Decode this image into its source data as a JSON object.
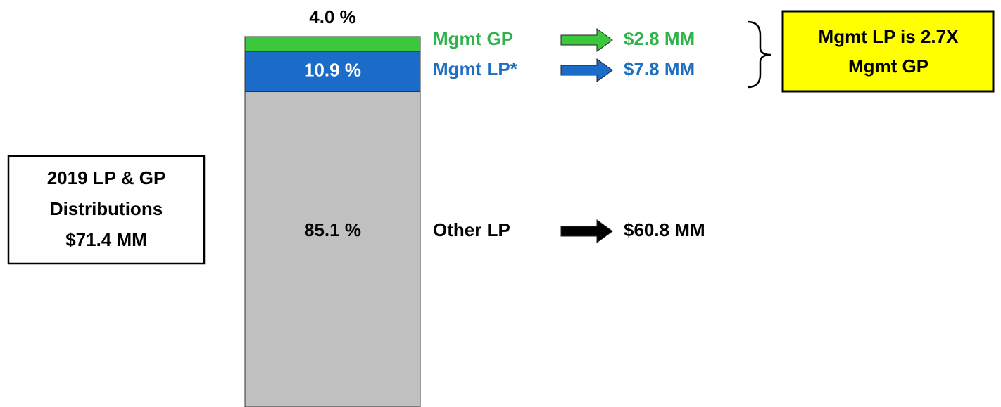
{
  "chart_data": {
    "type": "bar",
    "stacked": true,
    "ylim": [
      0,
      100
    ],
    "box_lines": [
      "2019 LP & GP",
      "Distributions",
      "$71.4 MM"
    ],
    "callout_lines": [
      "Mgmt LP is 2.7X",
      "Mgmt GP"
    ],
    "callout_color": "#ffff00",
    "series": [
      {
        "name": "Other LP",
        "color": "#c0c0c0",
        "text_color": "#000000",
        "values": [
          85.1
        ],
        "value_labels": [
          "85.1 %"
        ],
        "amount": "$60.8 MM"
      },
      {
        "name": "Mgmt LP*",
        "color": "#1a6cc8",
        "text_color": "#1f6fc0",
        "values": [
          10.9
        ],
        "value_labels": [
          "10.9 %"
        ],
        "amount": "$7.8 MM"
      },
      {
        "name": "Mgmt GP",
        "color": "#3cc83c",
        "text_color": "#2db34a",
        "values": [
          4.0
        ],
        "value_labels": [
          "4.0 %"
        ],
        "amount": "$2.8 MM"
      }
    ]
  }
}
